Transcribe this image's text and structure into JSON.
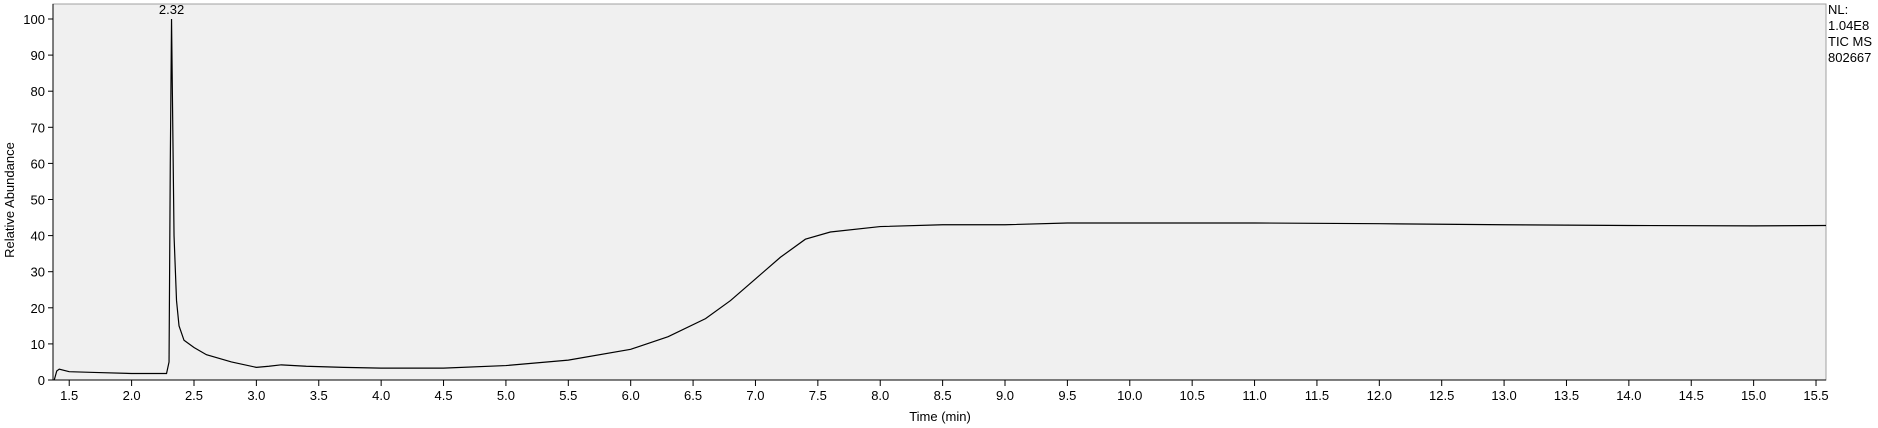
{
  "chart_data": {
    "type": "line",
    "xlabel": "Time (min)",
    "ylabel": "Relative Abundance",
    "info": [
      "NL:",
      "1.04E8",
      "TIC MS",
      "802667"
    ],
    "annotations": [
      {
        "label": "2.32",
        "x": 2.32,
        "y": 100
      }
    ],
    "color": "#000000",
    "x": [
      1.38,
      1.4,
      1.42,
      1.5,
      1.7,
      2.0,
      2.2,
      2.28,
      2.3,
      2.31,
      2.32,
      2.33,
      2.34,
      2.36,
      2.38,
      2.42,
      2.5,
      2.6,
      2.8,
      3.0,
      3.1,
      3.2,
      3.4,
      3.7,
      4.0,
      4.5,
      5.0,
      5.5,
      6.0,
      6.3,
      6.6,
      6.8,
      7.0,
      7.2,
      7.4,
      7.6,
      8.0,
      8.5,
      9.0,
      9.5,
      10.0,
      11.0,
      12.0,
      13.0,
      14.0,
      15.0,
      15.58
    ],
    "values": [
      0,
      2.5,
      3,
      2.3,
      2.1,
      1.8,
      1.8,
      1.8,
      5,
      60,
      100,
      70,
      40,
      22,
      15,
      11,
      9,
      7,
      5,
      3.5,
      3.8,
      4.2,
      3.8,
      3.5,
      3.3,
      3.3,
      4,
      5.5,
      8.5,
      12,
      17,
      22,
      28,
      34,
      39,
      41,
      42.5,
      43,
      43,
      43.5,
      43.5,
      43.5,
      43.3,
      43,
      42.8,
      42.7,
      42.8
    ],
    "xlim": [
      1.37,
      15.58
    ],
    "ylim": [
      0,
      100
    ],
    "xticks": [
      1.5,
      {
        "value": 2,
        "label": "2.0"
      },
      2.5,
      {
        "value": 3,
        "label": "3.0"
      },
      3.5,
      {
        "value": 4,
        "label": "4.0"
      },
      4.5,
      {
        "value": 5,
        "label": "5.0"
      },
      5.5,
      {
        "value": 6,
        "label": "6.0"
      },
      6.5,
      {
        "value": 7,
        "label": "7.0"
      },
      7.5,
      {
        "value": 8,
        "label": "8.0"
      },
      8.5,
      {
        "value": 9,
        "label": "9.0"
      },
      9.5,
      {
        "value": 10,
        "label": "10.0"
      },
      10.5,
      {
        "value": 11,
        "label": "11.0"
      },
      11.5,
      {
        "value": 12,
        "label": "12.0"
      },
      12.5,
      {
        "value": 13,
        "label": "13.0"
      },
      13.5,
      {
        "value": 14,
        "label": "14.0"
      },
      14.5,
      {
        "value": 15,
        "label": "15.0"
      },
      15.5
    ],
    "yticks": [
      0,
      10,
      20,
      30,
      40,
      50,
      60,
      70,
      80,
      90,
      100
    ]
  }
}
